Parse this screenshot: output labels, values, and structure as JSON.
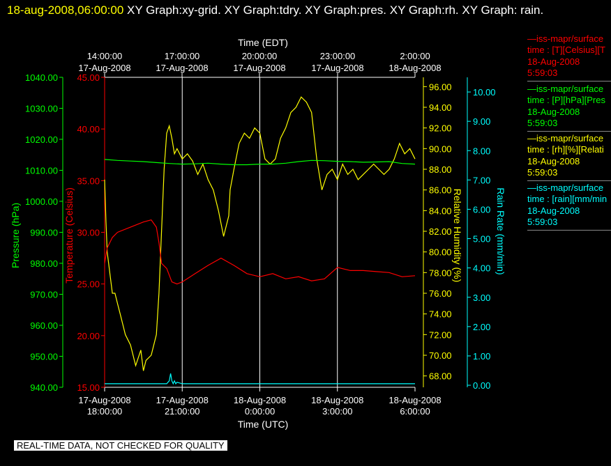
{
  "header": {
    "date": "18-aug-2008,06:00:00",
    "title": "XY Graph:xy-grid.  XY Graph:tdry.  XY Graph:pres.  XY Graph:rh.  XY Graph: rain."
  },
  "colors": {
    "background": "#000000",
    "pressure": "#00ff00",
    "temperature": "#ff0000",
    "humidity": "#ffff00",
    "rain": "#00ffff",
    "grid": "#ffffff",
    "text": "#ffffff"
  },
  "legend": [
    {
      "name": "—iss-mapr/surface",
      "line1": "time : [T][Celsius][T",
      "line2": "18-Aug-2008",
      "line3": "5:59:03",
      "color": "#ff0000"
    },
    {
      "name": "—iss-mapr/surface",
      "line1": "time : [P][hPa][Pres",
      "line2": "18-Aug-2008",
      "line3": "5:59:03",
      "color": "#00ff00"
    },
    {
      "name": "—iss-mapr/surface",
      "line1": "time : [rh][%][Relati",
      "line2": "18-Aug-2008",
      "line3": "5:59:03",
      "color": "#ffff00"
    },
    {
      "name": "—iss-mapr/surface",
      "line1": "time : [rain][mm/min",
      "line2": "18-Aug-2008",
      "line3": "5:59:03",
      "color": "#00ffff"
    }
  ],
  "banner": "REAL-TIME DATA, NOT CHECKED FOR QUALITY",
  "chart_data": {
    "type": "line",
    "grid": "vertical",
    "x_top": {
      "label": "Time (EDT)",
      "ticks": [
        [
          "14:00:00",
          "17-Aug-2008"
        ],
        [
          "17:00:00",
          "17-Aug-2008"
        ],
        [
          "20:00:00",
          "17-Aug-2008"
        ],
        [
          "23:00:00",
          "17-Aug-2008"
        ],
        [
          "2:00:00",
          "18-Aug-2008"
        ]
      ]
    },
    "x_bottom": {
      "label": "Time (UTC)",
      "range": [
        0,
        12
      ],
      "ticks": [
        [
          "17-Aug-2008",
          "18:00:00"
        ],
        [
          "17-Aug-2008",
          "21:00:00"
        ],
        [
          "18-Aug-2008",
          "0:00:00"
        ],
        [
          "18-Aug-2008",
          "3:00:00"
        ],
        [
          "18-Aug-2008",
          "6:00:00"
        ]
      ]
    },
    "axes": {
      "pressure": {
        "label": "Pressure (hPa)",
        "ylim": [
          940,
          1040
        ],
        "ticks": [
          "940.00",
          "950.00",
          "960.00",
          "970.00",
          "980.00",
          "990.00",
          "1000.00",
          "1010.00",
          "1020.00",
          "1030.00",
          "1040.00"
        ]
      },
      "temperature": {
        "label": "Temperature (Celsius)",
        "ylim": [
          15,
          45
        ],
        "ticks": [
          "15.00",
          "20.00",
          "25.00",
          "30.00",
          "35.00",
          "40.00",
          "45.00"
        ]
      },
      "humidity": {
        "label": "Relative Humidity (%)",
        "ylim": [
          66.9,
          96.9
        ],
        "ticks": [
          "68.00",
          "70.00",
          "72.00",
          "74.00",
          "76.00",
          "78.00",
          "80.00",
          "82.00",
          "84.00",
          "86.00",
          "88.00",
          "90.00",
          "92.00",
          "94.00",
          "96.00"
        ]
      },
      "rain": {
        "label": "Rain Rate (mm/min)",
        "ylim": [
          -0.07,
          10.5
        ],
        "ticks": [
          "0.00",
          "1.00",
          "2.00",
          "3.00",
          "4.00",
          "5.00",
          "6.00",
          "7.00",
          "8.00",
          "9.00",
          "10.00"
        ]
      }
    },
    "series": [
      {
        "axis": "humidity",
        "x": [
          0,
          0.05,
          0.1,
          0.2,
          0.3,
          0.4,
          0.5,
          0.6,
          0.7,
          0.8,
          0.9,
          1.0,
          1.2,
          1.4,
          1.5,
          1.6,
          1.8,
          2.0,
          2.1,
          2.2,
          2.3,
          2.4,
          2.5,
          2.6,
          2.7,
          2.8,
          3.0,
          3.2,
          3.4,
          3.6,
          3.8,
          4.0,
          4.2,
          4.4,
          4.6,
          4.8,
          4.85,
          5.0,
          5.2,
          5.4,
          5.6,
          5.8,
          6.0,
          6.2,
          6.4,
          6.6,
          6.8,
          7.0,
          7.2,
          7.4,
          7.6,
          7.8,
          8.0,
          8.2,
          8.4,
          8.6,
          8.8,
          9.0,
          9.2,
          9.4,
          9.6,
          9.8,
          10.0,
          10.2,
          10.4,
          10.6,
          10.8,
          11.0,
          11.2,
          11.4,
          11.6,
          11.8,
          12.0
        ],
        "y": [
          87,
          83,
          80,
          78,
          76,
          76,
          75,
          74,
          73,
          72,
          71.5,
          71,
          69,
          70.5,
          68.5,
          69.5,
          70,
          72,
          76,
          82,
          88,
          91.5,
          92.2,
          91,
          89.5,
          90,
          89,
          89.5,
          88.8,
          87.5,
          88.5,
          87,
          86,
          84,
          81.5,
          83.5,
          86,
          88,
          90.5,
          91.5,
          91,
          92,
          91.5,
          89,
          88.5,
          89,
          91,
          92,
          93.5,
          94,
          95,
          94.5,
          93.5,
          89,
          86,
          87.5,
          88,
          87,
          88.5,
          87.5,
          88,
          87,
          87.5,
          88,
          88.5,
          88,
          87.5,
          88,
          89,
          90.5,
          89.5,
          90,
          89
        ]
      },
      {
        "axis": "pressure",
        "x": [
          0,
          0.5,
          1,
          1.5,
          2,
          2.5,
          3,
          3.5,
          4,
          4.5,
          5,
          5.5,
          6,
          6.5,
          7,
          7.5,
          8,
          8.5,
          9,
          9.5,
          10,
          10.5,
          11,
          11.5,
          12
        ],
        "y": [
          1013.5,
          1013.2,
          1013,
          1012.8,
          1012.5,
          1012.2,
          1012,
          1012.1,
          1012.3,
          1012,
          1011.8,
          1011.8,
          1012,
          1012,
          1012.3,
          1012.8,
          1013.2,
          1013.1,
          1012.9,
          1012.8,
          1012.6,
          1012.7,
          1012.8,
          1012.2,
          1012
        ]
      },
      {
        "axis": "temperature",
        "x": [
          0,
          0.1,
          0.3,
          0.5,
          1,
          1.5,
          1.8,
          2.0,
          2.1,
          2.2,
          2.4,
          2.6,
          2.8,
          3.0,
          3.5,
          4.0,
          4.5,
          5.0,
          5.5,
          6.0,
          6.5,
          7.0,
          7.5,
          8.0,
          8.5,
          9.0,
          9.5,
          10,
          10.5,
          11,
          11.5,
          12
        ],
        "y": [
          27,
          28.5,
          29.5,
          30,
          30.5,
          31,
          31.2,
          30.5,
          29,
          27,
          26.5,
          25.2,
          25,
          25.2,
          26,
          26.8,
          27.5,
          26.8,
          26,
          25.7,
          26,
          25.5,
          25.7,
          25.3,
          25.5,
          26.6,
          26.3,
          26.3,
          26.2,
          26.1,
          25.7,
          25.8
        ]
      },
      {
        "axis": "rain",
        "x": [
          0,
          2.4,
          2.5,
          2.55,
          2.6,
          2.65,
          2.7,
          2.75,
          2.8,
          3,
          6,
          9,
          12
        ],
        "y": [
          0.05,
          0.05,
          0.15,
          0.4,
          0.15,
          0.05,
          0.15,
          0.05,
          0.1,
          0.05,
          0.05,
          0.05,
          0.05
        ]
      }
    ]
  }
}
